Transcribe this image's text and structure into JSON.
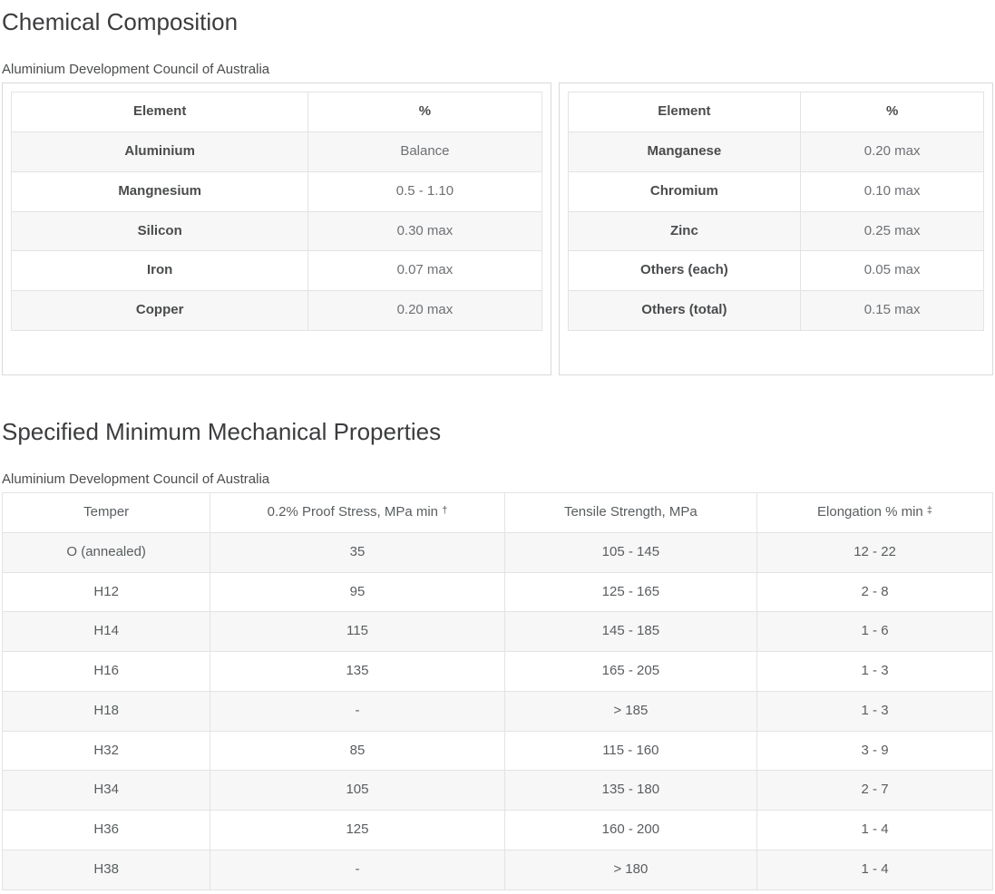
{
  "chemical": {
    "title": "Chemical Composition",
    "subtitle": "Aluminium Development Council of Australia",
    "left_table": {
      "headers": [
        "Element",
        "%"
      ],
      "rows": [
        [
          "Aluminium",
          "Balance"
        ],
        [
          "Mangnesium",
          "0.5 - 1.10"
        ],
        [
          "Silicon",
          "0.30 max"
        ],
        [
          "Iron",
          "0.07 max"
        ],
        [
          "Copper",
          "0.20 max"
        ]
      ]
    },
    "right_table": {
      "headers": [
        "Element",
        "%"
      ],
      "rows": [
        [
          "Manganese",
          "0.20 max"
        ],
        [
          "Chromium",
          "0.10 max"
        ],
        [
          "Zinc",
          "0.25 max"
        ],
        [
          "Others (each)",
          "0.05 max"
        ],
        [
          "Others (total)",
          "0.15 max"
        ]
      ]
    }
  },
  "mechanical": {
    "title": "Specified Minimum Mechanical Properties",
    "subtitle": "Aluminium Development Council of Australia",
    "table": {
      "headers": [
        "Temper",
        "0.2% Proof Stress, MPa min †",
        "Tensile Strength, MPa",
        "Elongation % min ‡"
      ],
      "rows": [
        [
          "O (annealed)",
          "35",
          "105 - 145",
          "12 - 22"
        ],
        [
          "H12",
          "95",
          "125 - 165",
          "2 - 8"
        ],
        [
          "H14",
          "115",
          "145 - 185",
          "1 - 6"
        ],
        [
          "H16",
          "135",
          "165 - 205",
          "1 - 3"
        ],
        [
          "H18",
          "-",
          "> 185",
          "1 - 3"
        ],
        [
          "H32",
          "85",
          "115 - 160",
          "3 - 9"
        ],
        [
          "H34",
          "105",
          "135 - 180",
          "2 - 7"
        ],
        [
          "H36",
          "125",
          "160 - 200",
          "1 - 4"
        ],
        [
          "H38",
          "-",
          "> 180",
          "1 - 4"
        ]
      ]
    }
  },
  "colors": {
    "heading_text": "#3b3c3e",
    "body_text": "#66696c",
    "table_border": "#e3e3e3",
    "box_border": "#d9d9d9",
    "row_alt_background": "#f7f7f7"
  }
}
